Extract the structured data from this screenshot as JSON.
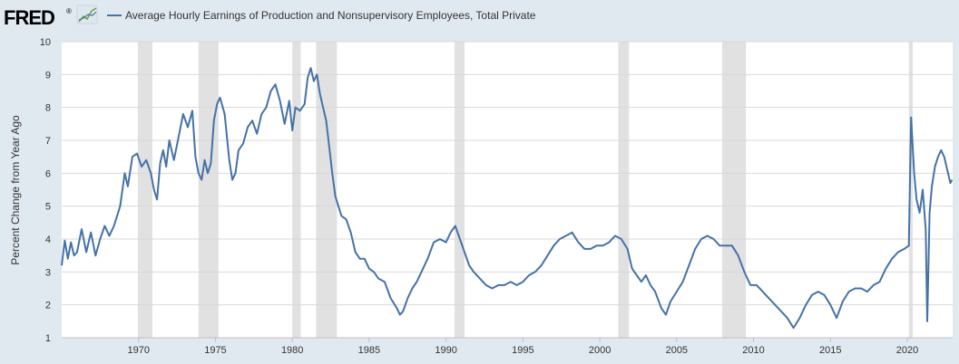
{
  "brand": {
    "logo_text": "FRED",
    "logo_registered": "®"
  },
  "colors": {
    "background": "#e1e9f0",
    "plot_background": "#ffffff",
    "series_line": "#4572a7",
    "recession_band": "#e1e1e1",
    "grid": "#d8d8d8"
  },
  "chart_data": {
    "type": "line",
    "title": "",
    "xlabel": "",
    "ylabel": "Percent Change from Year Ago",
    "xlim": [
      1965.0,
      2022.95
    ],
    "ylim": [
      1,
      10
    ],
    "x_ticks": [
      1970,
      1975,
      1980,
      1985,
      1990,
      1995,
      2000,
      2005,
      2010,
      2015,
      2020
    ],
    "y_ticks": [
      1,
      2,
      3,
      4,
      5,
      6,
      7,
      8,
      9,
      10
    ],
    "grid": "horizontal",
    "legend": "top-left",
    "recessions": [
      [
        1969.95,
        1970.9
      ],
      [
        1973.9,
        1975.2
      ],
      [
        1980.0,
        1980.55
      ],
      [
        1981.55,
        1982.9
      ],
      [
        1990.55,
        1991.2
      ],
      [
        2001.2,
        2001.9
      ],
      [
        2007.95,
        2009.5
      ],
      [
        2020.1,
        2020.35
      ]
    ],
    "series": [
      {
        "name": "Average Hourly Earnings of Production and Nonsupervisory Employees, Total Private",
        "points": [
          [
            1965.0,
            3.2
          ],
          [
            1965.2,
            3.95
          ],
          [
            1965.4,
            3.4
          ],
          [
            1965.6,
            3.9
          ],
          [
            1965.8,
            3.5
          ],
          [
            1966.0,
            3.6
          ],
          [
            1966.3,
            4.3
          ],
          [
            1966.6,
            3.6
          ],
          [
            1966.9,
            4.2
          ],
          [
            1967.2,
            3.5
          ],
          [
            1967.5,
            4.0
          ],
          [
            1967.8,
            4.4
          ],
          [
            1968.1,
            4.1
          ],
          [
            1968.4,
            4.4
          ],
          [
            1968.8,
            5.0
          ],
          [
            1969.1,
            6.0
          ],
          [
            1969.3,
            5.6
          ],
          [
            1969.6,
            6.5
          ],
          [
            1969.9,
            6.6
          ],
          [
            1970.2,
            6.2
          ],
          [
            1970.5,
            6.4
          ],
          [
            1970.8,
            6.0
          ],
          [
            1971.0,
            5.5
          ],
          [
            1971.2,
            5.2
          ],
          [
            1971.4,
            6.3
          ],
          [
            1971.6,
            6.7
          ],
          [
            1971.8,
            6.2
          ],
          [
            1972.0,
            7.0
          ],
          [
            1972.3,
            6.4
          ],
          [
            1972.6,
            7.1
          ],
          [
            1972.9,
            7.8
          ],
          [
            1973.2,
            7.4
          ],
          [
            1973.5,
            7.9
          ],
          [
            1973.7,
            6.5
          ],
          [
            1973.9,
            6.0
          ],
          [
            1974.1,
            5.8
          ],
          [
            1974.3,
            6.4
          ],
          [
            1974.5,
            6.0
          ],
          [
            1974.7,
            6.3
          ],
          [
            1974.9,
            7.6
          ],
          [
            1975.1,
            8.1
          ],
          [
            1975.3,
            8.3
          ],
          [
            1975.6,
            7.8
          ],
          [
            1975.9,
            6.4
          ],
          [
            1976.1,
            5.8
          ],
          [
            1976.3,
            6.0
          ],
          [
            1976.5,
            6.7
          ],
          [
            1976.8,
            6.9
          ],
          [
            1977.1,
            7.4
          ],
          [
            1977.4,
            7.6
          ],
          [
            1977.7,
            7.2
          ],
          [
            1978.0,
            7.8
          ],
          [
            1978.3,
            8.0
          ],
          [
            1978.6,
            8.5
          ],
          [
            1978.9,
            8.7
          ],
          [
            1979.2,
            8.2
          ],
          [
            1979.5,
            7.5
          ],
          [
            1979.8,
            8.2
          ],
          [
            1980.0,
            7.3
          ],
          [
            1980.2,
            8.0
          ],
          [
            1980.5,
            7.9
          ],
          [
            1980.8,
            8.1
          ],
          [
            1981.0,
            8.9
          ],
          [
            1981.2,
            9.2
          ],
          [
            1981.4,
            8.8
          ],
          [
            1981.6,
            9.0
          ],
          [
            1981.8,
            8.4
          ],
          [
            1982.0,
            8.0
          ],
          [
            1982.2,
            7.6
          ],
          [
            1982.4,
            6.8
          ],
          [
            1982.6,
            6.0
          ],
          [
            1982.8,
            5.3
          ],
          [
            1983.0,
            5.0
          ],
          [
            1983.2,
            4.7
          ],
          [
            1983.5,
            4.6
          ],
          [
            1983.8,
            4.2
          ],
          [
            1984.1,
            3.6
          ],
          [
            1984.4,
            3.4
          ],
          [
            1984.7,
            3.4
          ],
          [
            1985.0,
            3.1
          ],
          [
            1985.3,
            3.0
          ],
          [
            1985.6,
            2.8
          ],
          [
            1986.0,
            2.7
          ],
          [
            1986.4,
            2.2
          ],
          [
            1986.8,
            1.9
          ],
          [
            1987.0,
            1.7
          ],
          [
            1987.2,
            1.8
          ],
          [
            1987.5,
            2.2
          ],
          [
            1987.8,
            2.5
          ],
          [
            1988.1,
            2.7
          ],
          [
            1988.4,
            3.0
          ],
          [
            1988.8,
            3.4
          ],
          [
            1989.2,
            3.9
          ],
          [
            1989.6,
            4.0
          ],
          [
            1990.0,
            3.9
          ],
          [
            1990.3,
            4.2
          ],
          [
            1990.6,
            4.4
          ],
          [
            1990.9,
            4.0
          ],
          [
            1991.2,
            3.6
          ],
          [
            1991.5,
            3.2
          ],
          [
            1991.8,
            3.0
          ],
          [
            1992.2,
            2.8
          ],
          [
            1992.6,
            2.6
          ],
          [
            1993.0,
            2.5
          ],
          [
            1993.4,
            2.6
          ],
          [
            1993.8,
            2.6
          ],
          [
            1994.2,
            2.7
          ],
          [
            1994.6,
            2.6
          ],
          [
            1995.0,
            2.7
          ],
          [
            1995.4,
            2.9
          ],
          [
            1995.8,
            3.0
          ],
          [
            1996.2,
            3.2
          ],
          [
            1996.6,
            3.5
          ],
          [
            1997.0,
            3.8
          ],
          [
            1997.4,
            4.0
          ],
          [
            1997.8,
            4.1
          ],
          [
            1998.2,
            4.2
          ],
          [
            1998.6,
            3.9
          ],
          [
            1999.0,
            3.7
          ],
          [
            1999.4,
            3.7
          ],
          [
            1999.8,
            3.8
          ],
          [
            2000.2,
            3.8
          ],
          [
            2000.6,
            3.9
          ],
          [
            2001.0,
            4.1
          ],
          [
            2001.4,
            4.0
          ],
          [
            2001.8,
            3.7
          ],
          [
            2002.1,
            3.1
          ],
          [
            2002.4,
            2.9
          ],
          [
            2002.7,
            2.7
          ],
          [
            2003.0,
            2.9
          ],
          [
            2003.3,
            2.6
          ],
          [
            2003.6,
            2.4
          ],
          [
            2004.0,
            1.9
          ],
          [
            2004.3,
            1.7
          ],
          [
            2004.6,
            2.1
          ],
          [
            2005.0,
            2.4
          ],
          [
            2005.4,
            2.7
          ],
          [
            2005.8,
            3.2
          ],
          [
            2006.2,
            3.7
          ],
          [
            2006.6,
            4.0
          ],
          [
            2007.0,
            4.1
          ],
          [
            2007.4,
            4.0
          ],
          [
            2007.8,
            3.8
          ],
          [
            2008.2,
            3.8
          ],
          [
            2008.6,
            3.8
          ],
          [
            2009.0,
            3.5
          ],
          [
            2009.4,
            3.0
          ],
          [
            2009.8,
            2.6
          ],
          [
            2010.2,
            2.6
          ],
          [
            2010.6,
            2.4
          ],
          [
            2011.0,
            2.2
          ],
          [
            2011.4,
            2.0
          ],
          [
            2011.8,
            1.8
          ],
          [
            2012.2,
            1.6
          ],
          [
            2012.6,
            1.3
          ],
          [
            2013.0,
            1.6
          ],
          [
            2013.4,
            2.0
          ],
          [
            2013.8,
            2.3
          ],
          [
            2014.2,
            2.4
          ],
          [
            2014.6,
            2.3
          ],
          [
            2015.0,
            2.0
          ],
          [
            2015.4,
            1.6
          ],
          [
            2015.8,
            2.1
          ],
          [
            2016.2,
            2.4
          ],
          [
            2016.6,
            2.5
          ],
          [
            2017.0,
            2.5
          ],
          [
            2017.4,
            2.4
          ],
          [
            2017.8,
            2.6
          ],
          [
            2018.2,
            2.7
          ],
          [
            2018.6,
            3.1
          ],
          [
            2019.0,
            3.4
          ],
          [
            2019.4,
            3.6
          ],
          [
            2019.8,
            3.7
          ],
          [
            2020.1,
            3.8
          ],
          [
            2020.25,
            7.7
          ],
          [
            2020.45,
            6.0
          ],
          [
            2020.6,
            5.2
          ],
          [
            2020.8,
            4.8
          ],
          [
            2021.0,
            5.5
          ],
          [
            2021.2,
            4.3
          ],
          [
            2021.3,
            1.5
          ],
          [
            2021.45,
            4.8
          ],
          [
            2021.6,
            5.6
          ],
          [
            2021.8,
            6.2
          ],
          [
            2022.0,
            6.5
          ],
          [
            2022.2,
            6.7
          ],
          [
            2022.4,
            6.5
          ],
          [
            2022.6,
            6.1
          ],
          [
            2022.8,
            5.7
          ],
          [
            2022.9,
            5.8
          ]
        ]
      }
    ]
  }
}
